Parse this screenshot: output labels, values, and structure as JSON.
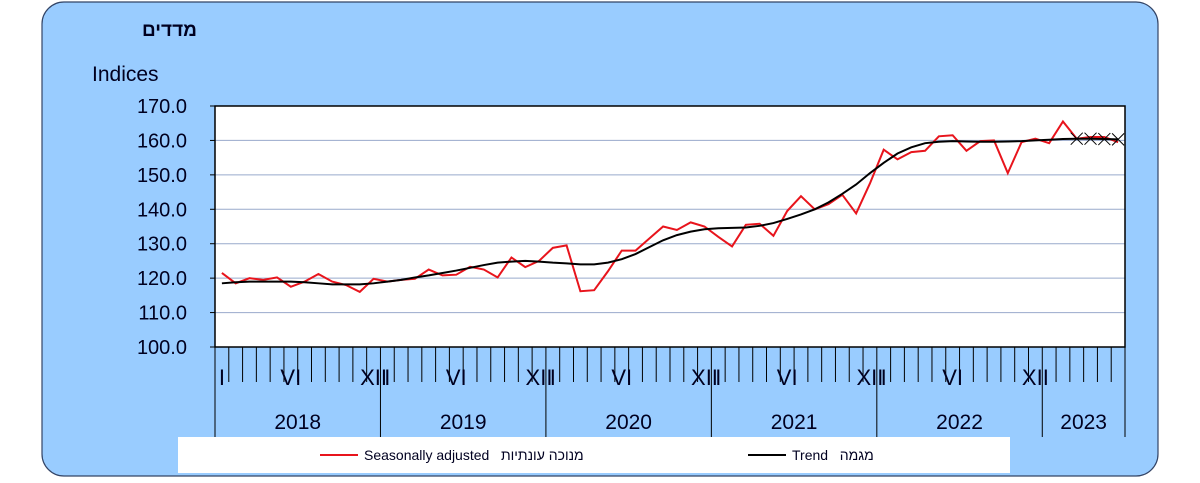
{
  "chart_data": {
    "type": "line",
    "title": "מדדים",
    "y_label": "Indices",
    "categories": [
      "I",
      null,
      null,
      null,
      null,
      "VI",
      null,
      null,
      null,
      null,
      null,
      "XII",
      "I",
      null,
      null,
      null,
      null,
      "VI",
      null,
      null,
      null,
      null,
      null,
      "XII",
      "I",
      null,
      null,
      null,
      null,
      "VI",
      null,
      null,
      null,
      null,
      null,
      "XII",
      "I",
      null,
      null,
      null,
      null,
      "VI",
      null,
      null,
      null,
      null,
      null,
      "XII",
      "I",
      null,
      null,
      null,
      null,
      "VI",
      null,
      null,
      null,
      null,
      null,
      "XII",
      null,
      null,
      null,
      null,
      null,
      null
    ],
    "years": [
      "2018",
      "2019",
      "2020",
      "2021",
      "2022",
      "2023"
    ],
    "series": [
      {
        "name": "Seasonally adjusted   מנוכה עונתיות",
        "color": "#e8141c",
        "values": [
          121.5,
          118.5,
          120,
          119.5,
          120.2,
          117.5,
          119,
          121.2,
          119,
          118,
          116,
          119.8,
          119,
          119.5,
          119.8,
          122.5,
          120.8,
          121,
          123.3,
          122.5,
          120.2,
          126,
          123.2,
          125,
          128.8,
          129.5,
          116.2,
          116.5,
          122,
          128,
          128,
          131.5,
          135,
          134,
          136.2,
          135,
          132,
          129.2,
          135.5,
          135.8,
          132.3,
          139.5,
          143.8,
          140,
          141.5,
          144.2,
          138.8,
          147.5,
          157.3,
          154.5,
          156.6,
          157,
          161.2,
          161.5,
          157,
          159.8,
          160,
          150.5,
          159.5,
          160.5,
          159.2,
          165.5,
          160.5,
          161,
          161,
          159.5
        ]
      },
      {
        "name": "Trend   מגמה",
        "color": "#000000",
        "x_markers_from": 62,
        "values": [
          118.5,
          118.8,
          119,
          119,
          119,
          119,
          118.8,
          118.5,
          118.2,
          118.2,
          118.2,
          118.5,
          119,
          119.5,
          120.2,
          120.8,
          121.5,
          122.2,
          123,
          123.8,
          124.5,
          124.8,
          125,
          124.8,
          124.5,
          124.3,
          124,
          124,
          124.5,
          125.5,
          127,
          129,
          131,
          132.5,
          133.5,
          134.2,
          134.5,
          134.6,
          134.7,
          135.2,
          136,
          137.2,
          138.5,
          140,
          142,
          144.5,
          147.2,
          150.5,
          153.5,
          156.2,
          158,
          159.2,
          159.6,
          159.8,
          159.7,
          159.6,
          159.6,
          159.7,
          159.8,
          160,
          160.2,
          160.4,
          160.5,
          160.5,
          160.4,
          160.3
        ]
      }
    ],
    "ylim": [
      100,
      170
    ],
    "yticks": [
      {
        "value": 100,
        "label": "100.0"
      },
      {
        "value": 110,
        "label": "110.0"
      },
      {
        "value": 120,
        "label": "120.0"
      },
      {
        "value": 130,
        "label": "130.0"
      },
      {
        "value": 140,
        "label": "140.0"
      },
      {
        "value": 150,
        "label": "150.0"
      },
      {
        "value": 160,
        "label": "160.0"
      },
      {
        "value": 170,
        "label": "170.0"
      }
    ],
    "grid": true
  }
}
